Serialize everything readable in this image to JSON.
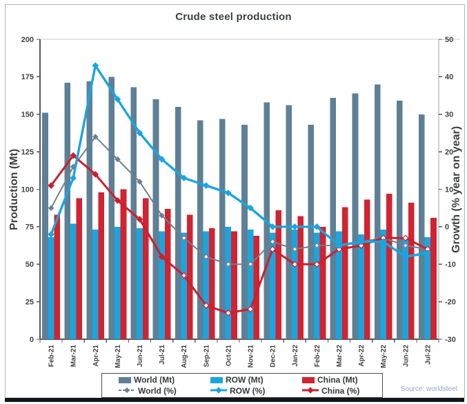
{
  "title": "Crude steel production",
  "source": "Source: worldsteel",
  "frame": {
    "border_color": "#b4b4b4",
    "bottom_bar_color": "#13151d",
    "top_separator_color": "#cbcbcb",
    "axis_line_color": "#54575a",
    "tick_text_color": "#3e4144"
  },
  "chart_data": {
    "type": "bar+line",
    "title": "Crude steel production",
    "categories": [
      "Feb-21",
      "Mar-21",
      "Apr-21",
      "May-21",
      "Jun-21",
      "Jul-21",
      "Aug-21",
      "Sep-21",
      "Oct-21",
      "Nov-21",
      "Dec-21",
      "Jan-22",
      "Feb-22",
      "Mar-22",
      "Apr-22",
      "May-22",
      "Jun-22",
      "Jul-22"
    ],
    "series": [
      {
        "id": "world-mt",
        "name": "World (Mt)",
        "kind": "bar",
        "axis": "left",
        "color": "#5e8096",
        "values": [
          151,
          171,
          172,
          175,
          168,
          160,
          155,
          146,
          147,
          143,
          158,
          156,
          143,
          161,
          164,
          170,
          159,
          150
        ]
      },
      {
        "id": "row-mt",
        "name": "ROW (Mt)",
        "kind": "bar",
        "axis": "left",
        "color": "#1aa5de",
        "values": [
          68,
          77,
          73,
          75,
          74,
          72,
          71,
          72,
          75,
          73,
          71,
          73,
          71,
          72,
          70,
          73,
          67,
          68
        ]
      },
      {
        "id": "china-mt",
        "name": "China (Mt)",
        "kind": "bar",
        "axis": "left",
        "color": "#d22330",
        "values": [
          83,
          94,
          98,
          100,
          94,
          87,
          83,
          74,
          72,
          69,
          86,
          82,
          75,
          88,
          93,
          97,
          91,
          81
        ]
      },
      {
        "id": "world-pct",
        "name": "World (%)",
        "kind": "line",
        "axis": "right",
        "color": "#6e8090",
        "z": 1,
        "line_width": 2,
        "marker_size": 3.4,
        "open_markers_from": 6,
        "values": [
          5,
          16,
          24,
          18,
          12,
          3,
          -3,
          -8,
          -10,
          -10,
          -4,
          -6,
          -5,
          -5,
          -4,
          -3,
          -5,
          -6
        ]
      },
      {
        "id": "row-pct",
        "name": "ROW (%)",
        "kind": "line",
        "axis": "right",
        "color": "#1aa5de",
        "z": 3,
        "line_width": 3.4,
        "marker_size": 4,
        "open_markers_from": null,
        "values": [
          -2,
          13,
          43,
          34,
          25,
          18,
          13,
          11,
          9,
          5,
          0,
          0,
          0,
          -5,
          -4,
          -4,
          -8,
          -7
        ]
      },
      {
        "id": "china-pct",
        "name": "China (%)",
        "kind": "line",
        "axis": "right",
        "color": "#cb1f2e",
        "z": 2,
        "line_width": 3,
        "marker_size": 4,
        "open_markers_from": 6,
        "values": [
          11,
          19,
          14,
          7,
          2,
          -8,
          -13,
          -21,
          -23,
          -22,
          -6,
          -10,
          -10,
          -6,
          -5,
          -3,
          -3,
          -6
        ]
      }
    ],
    "left_axis": {
      "label": "Production (Mt)",
      "min": 0,
      "max": 200,
      "step": 25
    },
    "right_axis": {
      "label": "Growth (% year on year)",
      "min": -30,
      "max": 50,
      "step": 10
    },
    "grid": "top border line only",
    "legend_position": "bottom"
  }
}
